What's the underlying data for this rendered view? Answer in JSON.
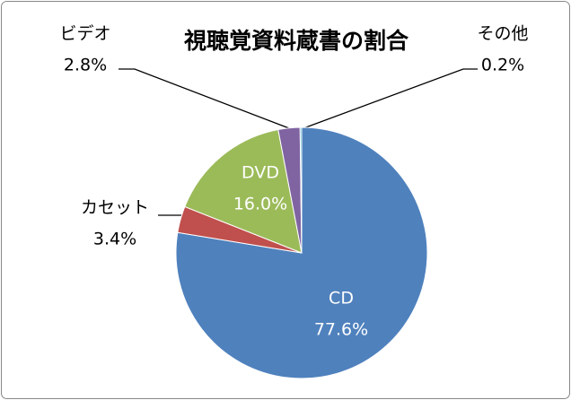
{
  "chart_data": {
    "type": "pie",
    "title": "視聴覚資料蔵書の割合",
    "categories": [
      "CD",
      "カセット",
      "DVD",
      "ビデオ",
      "その他"
    ],
    "values": [
      77.6,
      3.4,
      16.0,
      2.8,
      0.2
    ],
    "value_labels": [
      "77.6%",
      "3.4%",
      "16.0%",
      "2.8%",
      "0.2%"
    ],
    "colors": [
      "#4f81bd",
      "#c0504d",
      "#9bbb59",
      "#8064a2",
      "#4bacc6"
    ]
  }
}
